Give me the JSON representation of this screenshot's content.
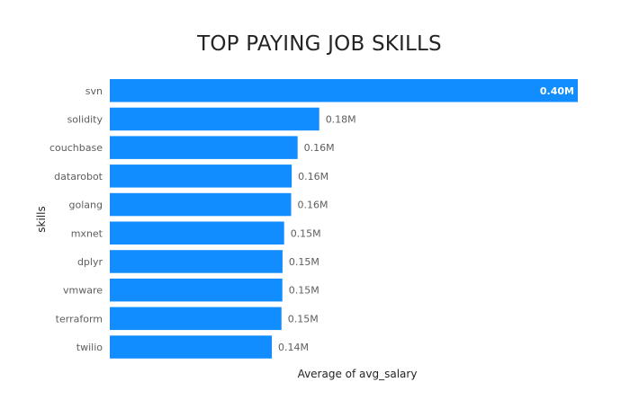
{
  "chart_data": {
    "type": "bar",
    "orientation": "horizontal",
    "title": "TOP PAYING JOB SKILLS",
    "xlabel": "Average of avg_salary",
    "ylabel": "skills",
    "categories": [
      "svn",
      "solidity",
      "couchbase",
      "datarobot",
      "golang",
      "mxnet",
      "dplyr",
      "vmware",
      "terraform",
      "twilio"
    ],
    "values": [
      400000,
      179000,
      160515,
      155486,
      155000,
      149000,
      147633,
      147500,
      146734,
      138500
    ],
    "data_labels": [
      "0.40M",
      "0.18M",
      "0.16M",
      "0.16M",
      "0.16M",
      "0.15M",
      "0.15M",
      "0.15M",
      "0.15M",
      "0.14M"
    ],
    "xlim": [
      0,
      400000
    ],
    "grid": false,
    "legend": "none",
    "bar_color": "#118DFF"
  }
}
